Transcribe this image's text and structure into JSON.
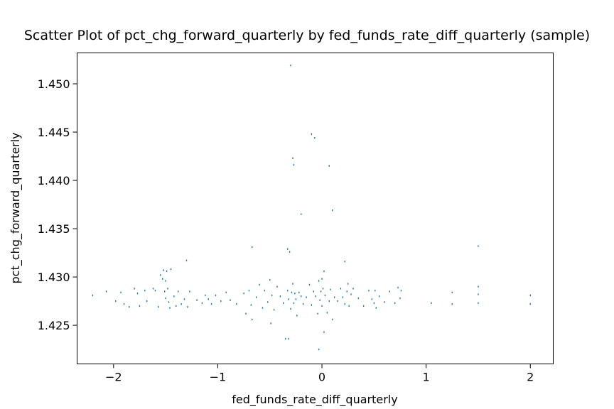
{
  "chart_data": {
    "type": "scatter",
    "title": "Scatter Plot of pct_chg_forward_quarterly by fed_funds_rate_diff_quarterly (sample)",
    "xlabel": "fed_funds_rate_diff_quarterly",
    "ylabel": "pct_chg_forward_quarterly",
    "xlim": [
      -2.35,
      2.22
    ],
    "ylim": [
      1.421,
      1.4532
    ],
    "xticks": [
      -2,
      -1,
      0,
      1,
      2
    ],
    "xtick_labels": [
      "−2",
      "−1",
      "0",
      "1",
      "2"
    ],
    "yticks": [
      1.425,
      1.43,
      1.435,
      1.44,
      1.445,
      1.45
    ],
    "ytick_labels": [
      "1.425",
      "1.430",
      "1.435",
      "1.440",
      "1.445",
      "1.450"
    ],
    "grid": false,
    "legend": "none",
    "marker_color": "#1f77b4",
    "series": [
      {
        "x": [
          -2.2,
          -2.07,
          -1.98,
          -1.93,
          -1.9,
          -1.85,
          -1.8,
          -1.77,
          -1.75,
          -1.7,
          -1.68,
          -1.62,
          -1.6,
          -1.57,
          -1.55,
          -1.53,
          -1.52,
          -1.51,
          -1.5,
          -1.5,
          -1.49,
          -1.48,
          -1.47,
          -1.46,
          -1.45,
          -1.42,
          -1.4,
          -1.38,
          -1.35,
          -1.32,
          -1.29,
          -1.27,
          -1.2,
          -1.15,
          -1.12,
          -1.09,
          -1.06,
          -1.02,
          -0.97,
          -0.92,
          -0.88,
          -0.82,
          -0.75,
          -0.73,
          -0.7,
          -0.68,
          -0.67,
          -0.63,
          -0.6,
          -0.57,
          -0.55,
          -0.52,
          -0.5,
          -0.49,
          -0.48,
          -0.46,
          -0.43,
          -0.4,
          -0.37,
          -0.35,
          -0.33,
          -0.32,
          -0.3,
          -0.29,
          -0.28,
          -0.27,
          -0.26,
          -0.25,
          -0.24,
          -0.22,
          -0.2,
          -0.18,
          -0.15,
          -0.12,
          -0.1,
          -0.08,
          -0.06,
          -0.04,
          -0.03,
          -0.02,
          -0.01,
          0.0,
          0.0,
          0.01,
          0.02,
          0.03,
          0.05,
          0.07,
          0.08,
          0.1,
          0.12,
          0.15,
          0.18,
          0.2,
          0.22,
          0.24,
          0.25,
          0.26,
          0.28,
          0.3,
          0.35,
          0.4,
          0.45,
          0.48,
          0.5,
          0.51,
          0.52,
          0.55,
          0.6,
          0.65,
          0.7,
          0.73,
          0.75,
          0.76,
          1.05,
          1.25,
          1.25,
          1.5,
          1.5,
          1.5,
          2.0,
          2.0,
          -0.3,
          -0.28,
          -0.27,
          -0.1,
          -0.07,
          0.07,
          0.1,
          -0.2,
          -0.33,
          -0.31,
          0.22,
          -0.67,
          -1.3,
          1.5,
          -0.32,
          -0.03,
          0.02
        ],
        "y": [
          1.4281,
          1.4285,
          1.4275,
          1.4284,
          1.4272,
          1.4269,
          1.4288,
          1.4283,
          1.427,
          1.4286,
          1.4275,
          1.4288,
          1.4286,
          1.4269,
          1.4302,
          1.4298,
          1.4307,
          1.4285,
          1.4296,
          1.4278,
          1.4306,
          1.4288,
          1.4274,
          1.4268,
          1.4308,
          1.428,
          1.427,
          1.4285,
          1.4272,
          1.4277,
          1.4269,
          1.4285,
          1.4276,
          1.4273,
          1.4281,
          1.4277,
          1.4272,
          1.4281,
          1.4275,
          1.4284,
          1.4276,
          1.4272,
          1.4283,
          1.4262,
          1.4286,
          1.4271,
          1.4256,
          1.4279,
          1.4292,
          1.4268,
          1.4286,
          1.4274,
          1.4297,
          1.4252,
          1.4281,
          1.4266,
          1.429,
          1.428,
          1.4273,
          1.4236,
          1.4286,
          1.4277,
          1.4267,
          1.4284,
          1.4293,
          1.4273,
          1.4283,
          1.4277,
          1.426,
          1.4284,
          1.428,
          1.4272,
          1.4279,
          1.4292,
          1.4271,
          1.4285,
          1.428,
          1.4262,
          1.4296,
          1.4276,
          1.4285,
          1.4298,
          1.427,
          1.4288,
          1.4306,
          1.4281,
          1.4263,
          1.4275,
          1.4287,
          1.4256,
          1.4279,
          1.4275,
          1.4288,
          1.4279,
          1.4272,
          1.4285,
          1.4293,
          1.427,
          1.4282,
          1.4288,
          1.4278,
          1.427,
          1.4286,
          1.4277,
          1.4273,
          1.4286,
          1.4268,
          1.428,
          1.4274,
          1.4285,
          1.4273,
          1.4289,
          1.4278,
          1.4286,
          1.4273,
          1.4272,
          1.4284,
          1.4273,
          1.4282,
          1.429,
          1.4272,
          1.4281,
          1.4519,
          1.4423,
          1.4416,
          1.4448,
          1.4444,
          1.4415,
          1.4369,
          1.4365,
          1.4329,
          1.4326,
          1.4316,
          1.4331,
          1.4317,
          1.4332,
          1.4236,
          1.4225,
          1.4243
        ]
      }
    ]
  }
}
